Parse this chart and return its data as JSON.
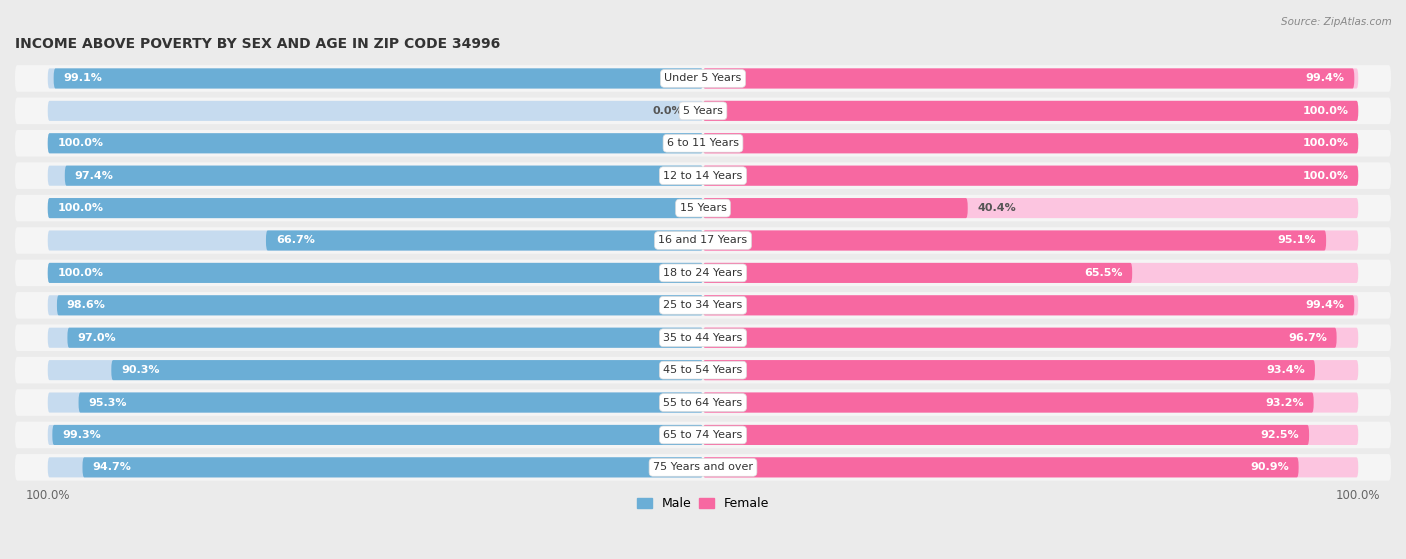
{
  "title": "INCOME ABOVE POVERTY BY SEX AND AGE IN ZIP CODE 34996",
  "source": "Source: ZipAtlas.com",
  "categories": [
    "Under 5 Years",
    "5 Years",
    "6 to 11 Years",
    "12 to 14 Years",
    "15 Years",
    "16 and 17 Years",
    "18 to 24 Years",
    "25 to 34 Years",
    "35 to 44 Years",
    "45 to 54 Years",
    "55 to 64 Years",
    "65 to 74 Years",
    "75 Years and over"
  ],
  "male_values": [
    99.1,
    0.0,
    100.0,
    97.4,
    100.0,
    66.7,
    100.0,
    98.6,
    97.0,
    90.3,
    95.3,
    99.3,
    94.7
  ],
  "female_values": [
    99.4,
    100.0,
    100.0,
    100.0,
    40.4,
    95.1,
    65.5,
    99.4,
    96.7,
    93.4,
    93.2,
    92.5,
    90.9
  ],
  "male_color": "#6baed6",
  "male_color_light": "#c6dbef",
  "female_color": "#f768a1",
  "female_color_light": "#fcc5e0",
  "male_label": "Male",
  "female_label": "Female",
  "background_color": "#ebebeb",
  "row_bg_color": "#f5f5f5",
  "title_fontsize": 10,
  "label_fontsize": 8,
  "tick_fontsize": 8.5,
  "value_fontsize": 8
}
